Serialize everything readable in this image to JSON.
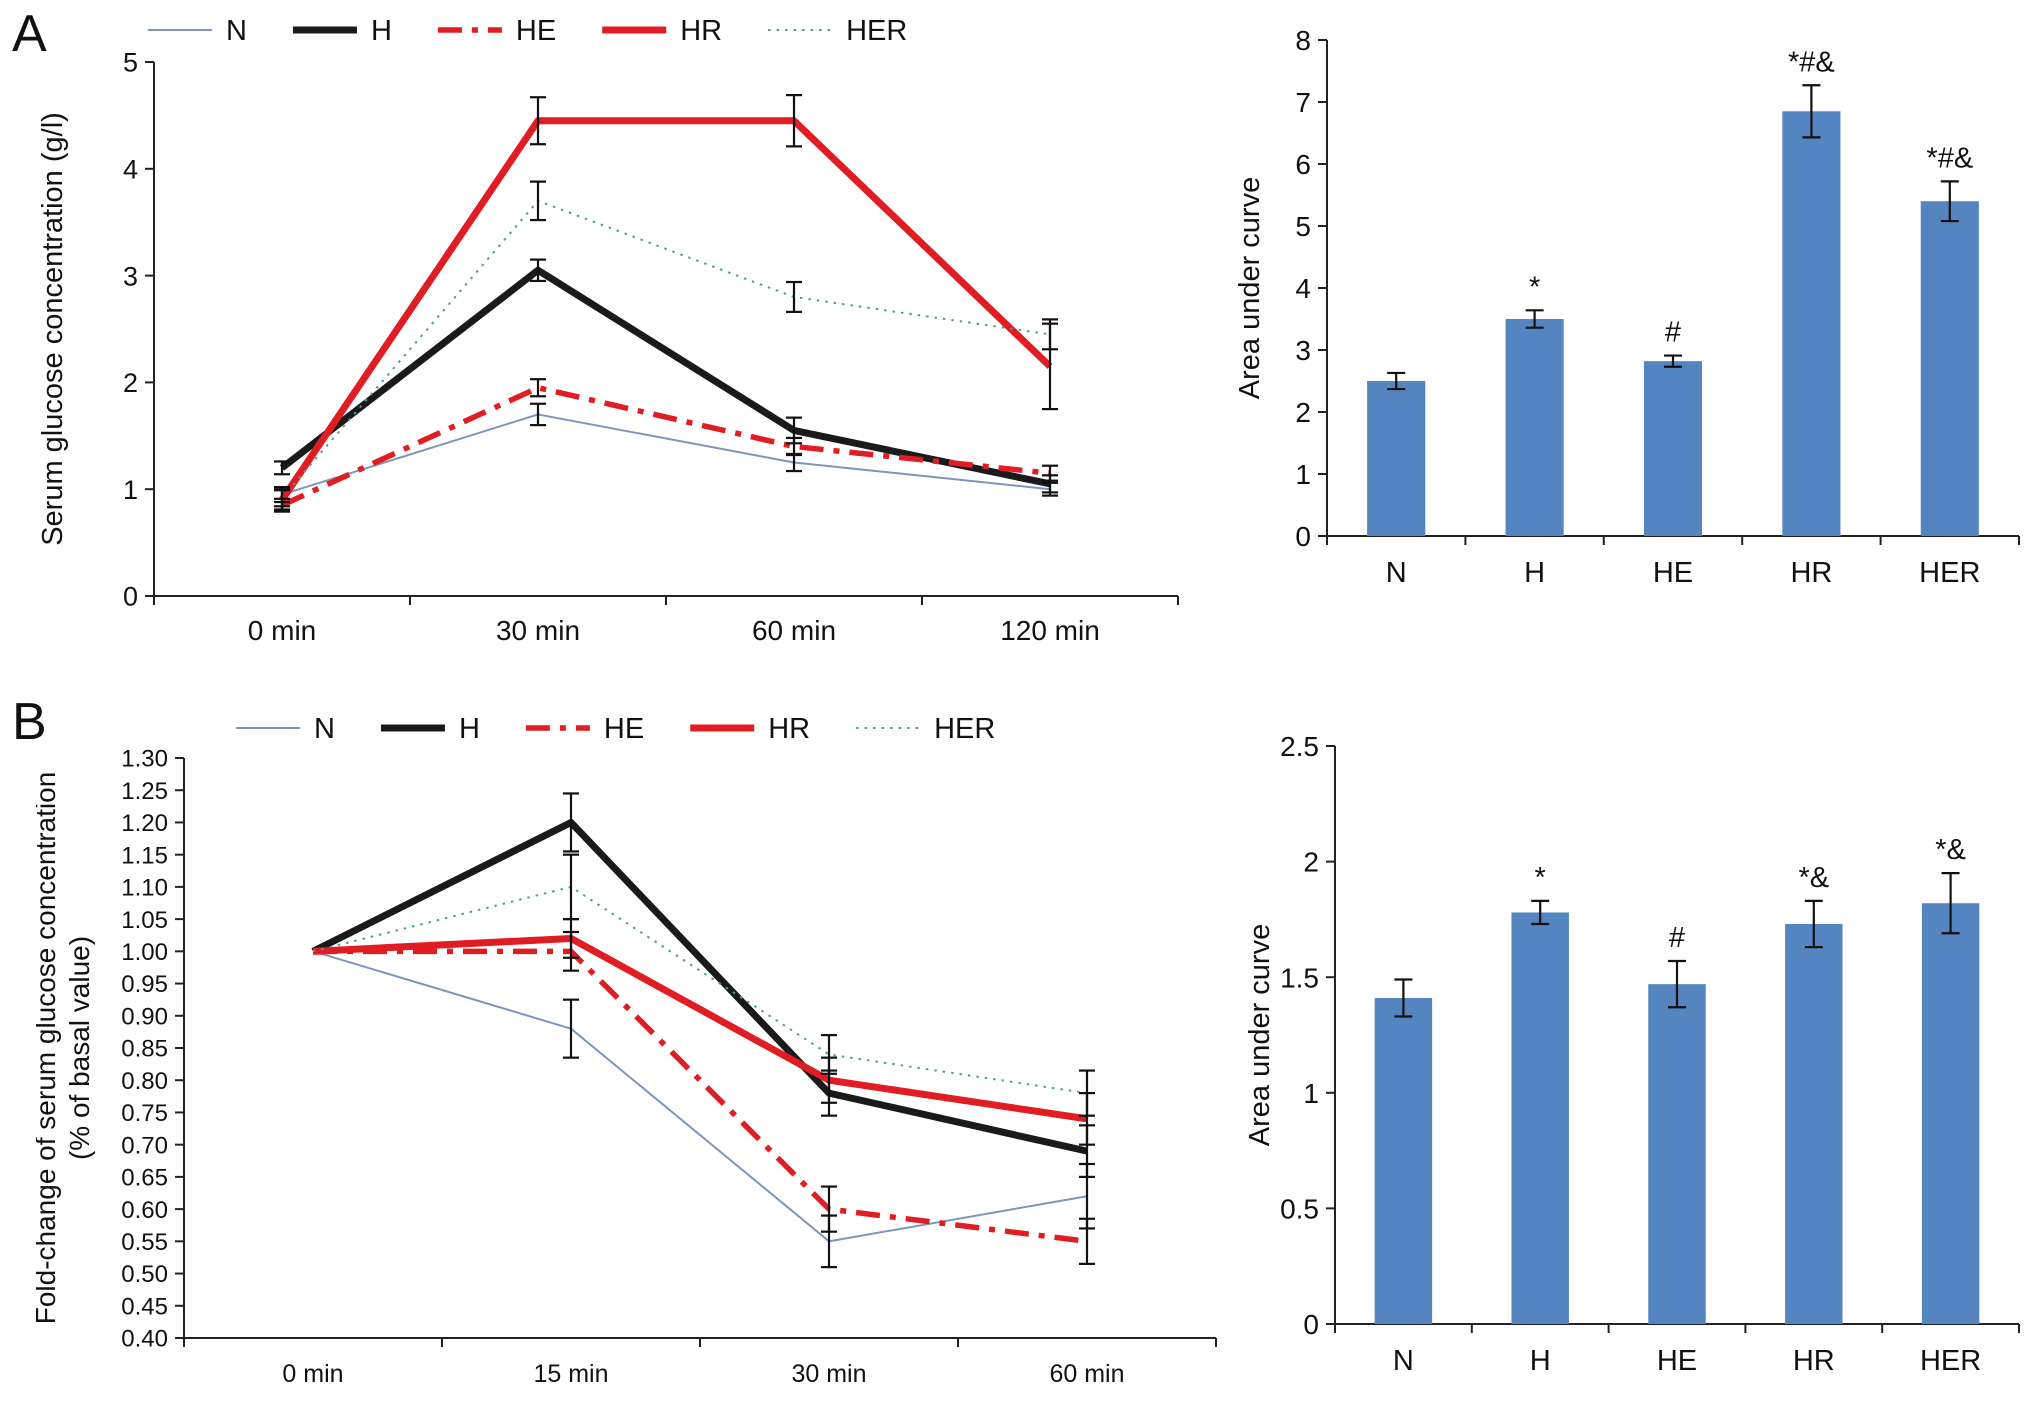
{
  "panels": {
    "a": "A",
    "b": "B"
  },
  "colors": {
    "bar_blue": "#5585c0",
    "line_red": "#e01d23",
    "line_black": "#1a1a1a",
    "line_n": "#7e96b8",
    "line_teal": "#4e9c98",
    "error_bar": "#111111"
  },
  "chart_data": [
    {
      "type": "line",
      "panel": "A",
      "ylabel": [
        "Serum glucose concentration (g/l)"
      ],
      "ylim": [
        0,
        5
      ],
      "ytick_values": [
        0,
        1,
        2,
        3,
        4,
        5
      ],
      "ytick_labels": [
        "0",
        "1",
        "2",
        "3",
        "4",
        "5"
      ],
      "x_labels": [
        "0 min",
        "30 min",
        "60 min",
        "120 min"
      ],
      "legend_position": "top",
      "grid": false,
      "series": [
        {
          "name": "N",
          "color": "#7e96b8",
          "width": 2,
          "dash": "solid",
          "values": [
            0.95,
            1.7,
            1.25,
            1.0
          ],
          "errors": [
            0.07,
            0.1,
            0.08,
            0.06
          ]
        },
        {
          "name": "H",
          "color": "#1a1a1a",
          "width": 7,
          "dash": "solid",
          "values": [
            1.2,
            3.05,
            1.55,
            1.05
          ],
          "errors": [
            0.06,
            0.1,
            0.12,
            0.08
          ]
        },
        {
          "name": "HE",
          "color": "#e01d23",
          "width": 5.5,
          "dash": "dashdot",
          "values": [
            0.85,
            1.95,
            1.4,
            1.15
          ],
          "errors": [
            0.06,
            0.08,
            0.08,
            0.07
          ]
        },
        {
          "name": "HR",
          "color": "#e01d23",
          "width": 7,
          "dash": "solid",
          "values": [
            0.9,
            4.45,
            4.45,
            2.15
          ],
          "errors": [
            0.09,
            0.22,
            0.24,
            0.4
          ]
        },
        {
          "name": "HER",
          "color": "#4e9c98",
          "width": 2,
          "dash": "dotted",
          "values": [
            0.92,
            3.7,
            2.8,
            2.45
          ],
          "errors": [
            0.08,
            0.18,
            0.14,
            0.14
          ]
        }
      ]
    },
    {
      "type": "bar",
      "panel": "A",
      "ylabel": [
        "Area under curve"
      ],
      "ylim": [
        0,
        8
      ],
      "ytick_values": [
        0,
        1,
        2,
        3,
        4,
        5,
        6,
        7,
        8
      ],
      "ytick_labels": [
        "0",
        "1",
        "2",
        "3",
        "4",
        "5",
        "6",
        "7",
        "8"
      ],
      "categories": [
        "N",
        "H",
        "HE",
        "HR",
        "HER"
      ],
      "values": [
        2.5,
        3.5,
        2.82,
        6.85,
        5.4
      ],
      "errors": [
        0.13,
        0.14,
        0.09,
        0.42,
        0.32
      ],
      "annotations": [
        "",
        "*",
        "#",
        "*#&",
        "*#&"
      ],
      "bar_color": "#5585c0",
      "grid": false
    },
    {
      "type": "line",
      "panel": "B",
      "ylabel": [
        "Fold-change of serum glucose concentration",
        "(% of basal value)"
      ],
      "ylim": [
        0.4,
        1.3
      ],
      "ytick_values": [
        0.4,
        0.45,
        0.5,
        0.55,
        0.6,
        0.65,
        0.7,
        0.75,
        0.8,
        0.85,
        0.9,
        0.95,
        1.0,
        1.05,
        1.1,
        1.15,
        1.2,
        1.25,
        1.3
      ],
      "ytick_labels": [
        "0.40",
        "0.45",
        "0.50",
        "0.55",
        "0.60",
        "0.65",
        "0.70",
        "0.75",
        "0.80",
        "0.85",
        "0.90",
        "0.95",
        "1.00",
        "1.05",
        "1.10",
        "1.15",
        "1.20",
        "1.25",
        "1.30"
      ],
      "x_labels": [
        "0 min",
        "15 min",
        "30 min",
        "60 min"
      ],
      "legend_position": "top",
      "grid": false,
      "series": [
        {
          "name": "N",
          "color": "#7e96b8",
          "width": 2,
          "dash": "solid",
          "values": [
            1.0,
            0.88,
            0.55,
            0.62
          ],
          "errors": [
            0,
            0.045,
            0.04,
            0.05
          ]
        },
        {
          "name": "H",
          "color": "#1a1a1a",
          "width": 7,
          "dash": "solid",
          "values": [
            1.0,
            1.2,
            0.78,
            0.69
          ],
          "errors": [
            0,
            0.045,
            0.035,
            0.04
          ]
        },
        {
          "name": "HE",
          "color": "#e01d23",
          "width": 5.5,
          "dash": "dashdot",
          "values": [
            1.0,
            1.0,
            0.6,
            0.55
          ],
          "errors": [
            0,
            0.03,
            0.035,
            0.035
          ]
        },
        {
          "name": "HR",
          "color": "#e01d23",
          "width": 7,
          "dash": "solid",
          "values": [
            1.0,
            1.02,
            0.8,
            0.74
          ],
          "errors": [
            0,
            0.03,
            0.035,
            0.04
          ]
        },
        {
          "name": "HER",
          "color": "#4e9c98",
          "width": 2,
          "dash": "dotted",
          "values": [
            1.0,
            1.1,
            0.84,
            0.78
          ],
          "errors": [
            0,
            0.05,
            0.03,
            0.035
          ]
        }
      ]
    },
    {
      "type": "bar",
      "panel": "B",
      "ylabel": [
        "Area under curve"
      ],
      "ylim": [
        0,
        2.5
      ],
      "ytick_values": [
        0,
        0.5,
        1,
        1.5,
        2,
        2.5
      ],
      "ytick_labels": [
        "0",
        "0.5",
        "1",
        "1.5",
        "2",
        "2.5"
      ],
      "categories": [
        "N",
        "H",
        "HE",
        "HR",
        "HER"
      ],
      "values": [
        1.41,
        1.78,
        1.47,
        1.73,
        1.82
      ],
      "errors": [
        0.08,
        0.05,
        0.1,
        0.1,
        0.13
      ],
      "annotations": [
        "",
        "*",
        "#",
        "*&",
        "*&"
      ],
      "bar_color": "#5585c0",
      "grid": false
    }
  ]
}
